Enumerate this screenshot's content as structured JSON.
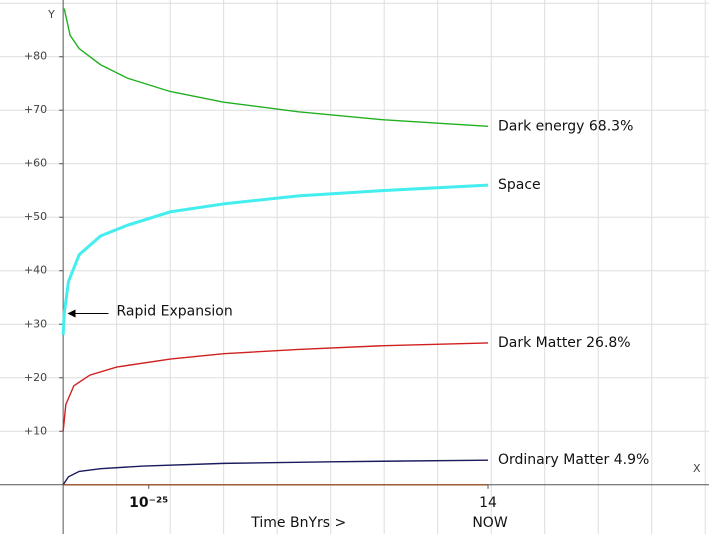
{
  "chart_data": {
    "type": "line",
    "xlim": [
      -1.18,
      12.07
    ],
    "ylim": [
      -9.2,
      90.6
    ],
    "xticks": [
      {
        "value": 1.6,
        "label": "10⁻²⁵"
      },
      {
        "value": 7.94,
        "label": "14"
      }
    ],
    "yticks": [
      {
        "value": 10,
        "label": "+10"
      },
      {
        "value": 20,
        "label": "+20"
      },
      {
        "value": 30,
        "label": "+30"
      },
      {
        "value": 40,
        "label": "+40"
      },
      {
        "value": 50,
        "label": "+50"
      },
      {
        "value": 60,
        "label": "+60"
      },
      {
        "value": 70,
        "label": "+70"
      },
      {
        "value": 80,
        "label": "+80"
      }
    ],
    "xgrid": [
      1,
      2,
      3,
      4,
      5,
      6,
      7,
      8,
      9,
      10,
      11,
      12
    ],
    "ygrid": [
      10,
      20,
      30,
      40,
      50,
      60,
      70,
      80,
      90
    ],
    "grid": true,
    "x_axis_label": "X",
    "y_axis_label": "Y",
    "x_title": "Time BnYrs >",
    "annotations": [
      {
        "text": "NOW",
        "x": 7.94
      },
      {
        "text": "Rapid Expansion",
        "x": 0.1,
        "y": 32
      }
    ],
    "series": [
      {
        "name": "Dark energy 68.3%",
        "color": "#22b022",
        "x": [
          0.02,
          0.13,
          0.3,
          0.7,
          1.2,
          2,
          3,
          4.4,
          6,
          7.94
        ],
        "values": [
          89,
          84,
          81.5,
          78.5,
          76,
          73.5,
          71.5,
          69.7,
          68.2,
          67
        ]
      },
      {
        "name": "Space",
        "color": "#44eeee",
        "x": [
          0,
          0.02,
          0.1,
          0.3,
          0.7,
          1.2,
          2,
          3,
          4.4,
          6,
          7.94
        ],
        "values": [
          28,
          32,
          38,
          43,
          46.5,
          48.5,
          51,
          52.5,
          54,
          55,
          56
        ]
      },
      {
        "name": "Dark Matter 26.8%",
        "color": "#d02020",
        "x": [
          0,
          0.05,
          0.2,
          0.5,
          1,
          2,
          3,
          4.4,
          6,
          7.94
        ],
        "values": [
          10,
          15,
          18.5,
          20.5,
          22,
          23.5,
          24.5,
          25.3,
          26,
          26.5
        ]
      },
      {
        "name": "Ordinary Matter 4.9%",
        "color": "#1a1a5e",
        "x": [
          0,
          0.1,
          0.3,
          0.7,
          1.5,
          3,
          5,
          7.94
        ],
        "values": [
          0,
          1.5,
          2.5,
          3,
          3.5,
          4,
          4.3,
          4.6
        ]
      },
      {
        "color": "#a0522d",
        "x": [
          0,
          7.94
        ],
        "values": [
          0,
          0
        ]
      }
    ]
  }
}
